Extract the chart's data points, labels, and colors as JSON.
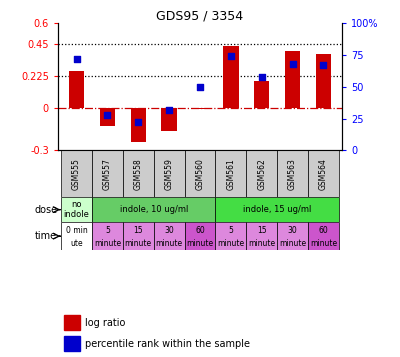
{
  "title": "GDS95 / 3354",
  "samples": [
    "GSM555",
    "GSM557",
    "GSM558",
    "GSM559",
    "GSM560",
    "GSM561",
    "GSM562",
    "GSM563",
    "GSM564"
  ],
  "log_ratio": [
    0.265,
    -0.13,
    -0.24,
    -0.16,
    -0.01,
    0.44,
    0.19,
    0.4,
    0.38
  ],
  "percentile": [
    72,
    28,
    22,
    32,
    50,
    74,
    58,
    68,
    67
  ],
  "ylim_left": [
    -0.3,
    0.6
  ],
  "ylim_right": [
    0,
    100
  ],
  "yticks_left": [
    -0.3,
    0,
    0.225,
    0.45,
    0.6
  ],
  "yticks_right": [
    0,
    25,
    50,
    75,
    100
  ],
  "hlines": [
    0.45,
    0.225
  ],
  "bar_color": "#cc0000",
  "dot_color": "#0000cc",
  "zero_line_color": "#cc0000",
  "hline_color": "black",
  "dose_groups": [
    [
      0,
      1,
      "no\nindole",
      "#ccffcc"
    ],
    [
      1,
      5,
      "indole, 10 ug/ml",
      "#66cc66"
    ],
    [
      5,
      9,
      "indole, 15 ug/ml",
      "#44dd44"
    ]
  ],
  "time_tops": [
    "0 min",
    "5",
    "15",
    "30",
    "60",
    "5",
    "15",
    "30",
    "60"
  ],
  "time_bots": [
    "ute",
    "minute",
    "minute",
    "minute",
    "minute",
    "minute",
    "minute",
    "minute",
    "minute"
  ],
  "time_colors": [
    "#ffffff",
    "#dd88dd",
    "#dd88dd",
    "#dd88dd",
    "#cc55cc",
    "#dd88dd",
    "#dd88dd",
    "#dd88dd",
    "#cc55cc"
  ],
  "sample_color": "#cccccc",
  "legend_bar": "log ratio",
  "legend_dot": "percentile rank within the sample",
  "bar_width": 0.5
}
